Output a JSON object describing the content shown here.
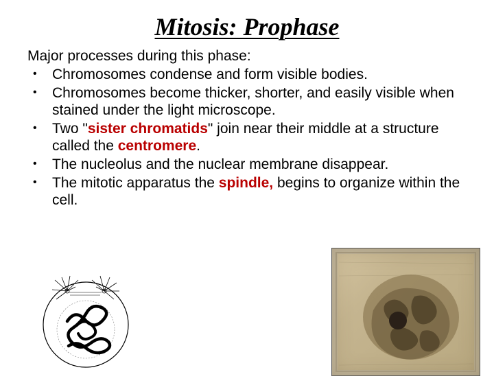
{
  "title": "Mitosis: Prophase",
  "intro": "Major processes during this phase:",
  "bullets": [
    {
      "html": "Chromosomes condense and form visible bodies."
    },
    {
      "html": "Chromosomes become thicker, shorter, and easily visible when stained under the light microscope."
    },
    {
      "html": "Two  \"<span class=\"kw\">sister chromatids</span>\"  join  near  their  middle  at  a structure called the <span class=\"kw\">centromere</span>."
    },
    {
      "html": "The nucleolus and the nuclear membrane disappear."
    },
    {
      "html": "The  mitotic apparatus the <span class=\"kw\">spindle,</span> begins to organize within the cell."
    }
  ],
  "diagram": {
    "type": "line-drawing",
    "description": "prophase-cell-diagram",
    "stroke": "#000000",
    "background": "#ffffff"
  },
  "photo": {
    "type": "micrograph",
    "description": "prophase-cell-micrograph",
    "background_tint": "#c5b590",
    "nucleus_color": "#6a5a3a",
    "nucleolus_color": "#2a2018",
    "border_color": "#555555"
  },
  "colors": {
    "keyword": "#b90000",
    "text": "#000000",
    "page_bg": "#ffffff"
  }
}
